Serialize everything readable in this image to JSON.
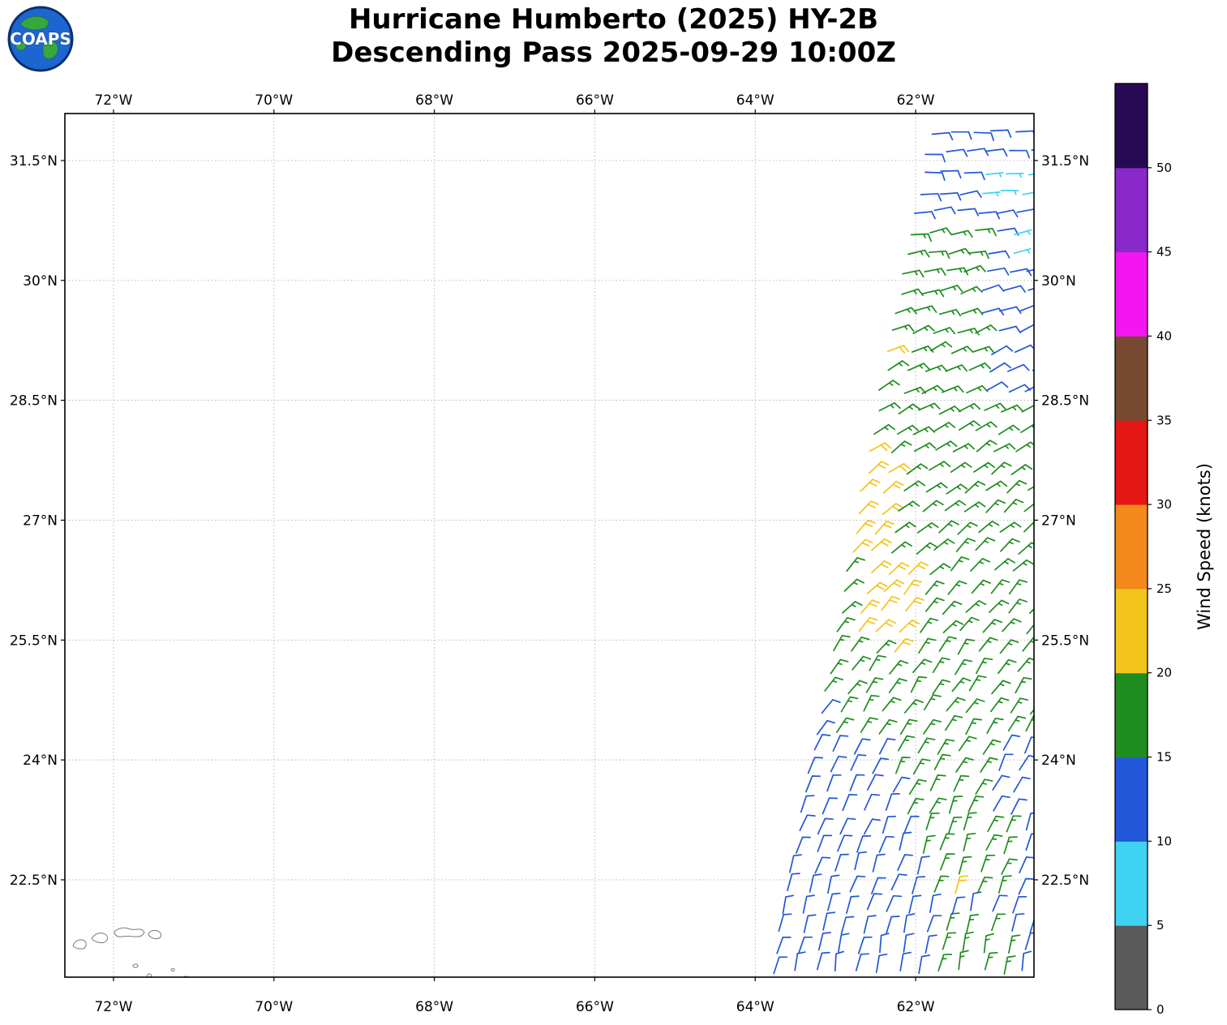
{
  "header": {
    "logo_text": "COAPS",
    "title_line1": "Hurricane Humberto (2025) HY-2B",
    "title_line2": "Descending Pass 2025-09-29 10:00Z"
  },
  "chart_data": {
    "type": "wind_barb_map",
    "title": "Hurricane Humberto (2025) HY-2B",
    "subtitle": "Descending Pass 2025-09-29 10:00Z",
    "x_axis": {
      "ticks": [
        -72,
        -70,
        -68,
        -66,
        -64,
        -62
      ],
      "tick_labels": [
        "72°W",
        "70°W",
        "68°W",
        "66°W",
        "64°W",
        "62°W"
      ],
      "range": [
        -72.606,
        -60.525
      ]
    },
    "y_axis": {
      "ticks": [
        31.5,
        30,
        28.5,
        27,
        25.5,
        24,
        22.5
      ],
      "tick_labels": [
        "31.5°N",
        "30°N",
        "28.5°N",
        "27°N",
        "25.5°N",
        "24°N",
        "22.5°N"
      ],
      "range": [
        21.282,
        32.088
      ]
    },
    "grid": {
      "style": "dashed",
      "color": "#b0b0b0"
    },
    "colorbar": {
      "label": "Wind Speed (knots)",
      "tick_values": [
        0,
        5,
        10,
        15,
        20,
        25,
        30,
        35,
        40,
        45,
        50
      ],
      "max_value": 55,
      "segments": [
        {
          "from": 0,
          "to": 5,
          "color": "#5a5a5a"
        },
        {
          "from": 5,
          "to": 10,
          "color": "#3fd2f2"
        },
        {
          "from": 10,
          "to": 15,
          "color": "#2257d9"
        },
        {
          "from": 15,
          "to": 20,
          "color": "#1f8c1f"
        },
        {
          "from": 20,
          "to": 25,
          "color": "#f2c41c"
        },
        {
          "from": 25,
          "to": 30,
          "color": "#f2891a"
        },
        {
          "from": 30,
          "to": 35,
          "color": "#e51616"
        },
        {
          "from": 35,
          "to": 40,
          "color": "#774a31"
        },
        {
          "from": 40,
          "to": 45,
          "color": "#f316f3"
        },
        {
          "from": 45,
          "to": 50,
          "color": "#8929c9"
        },
        {
          "from": 50,
          "to": 55,
          "color": "#270a53"
        }
      ]
    },
    "speed_colors": [
      {
        "min": 5,
        "max": 10,
        "color": "#3fd2f2"
      },
      {
        "min": 10,
        "max": 15,
        "color": "#2257d9"
      },
      {
        "min": 15,
        "max": 20,
        "color": "#1f8c1f"
      },
      {
        "min": 20,
        "max": 25,
        "color": "#f2c41c"
      }
    ],
    "swath": {
      "lat_min": 21.35,
      "lat_max": 32.05,
      "lat_step": 0.25,
      "lon_step": 0.26,
      "lon_right": -60.55,
      "left_edge": {
        "lat_ref": 21.3,
        "lon_at_ref": -63.78,
        "dlon_dlat": 0.186
      }
    },
    "default_speed_kt": 12,
    "speed_rules": [
      {
        "lat": [
          30.9,
          31.5
        ],
        "lon": [
          -61.35,
          -60.4
        ],
        "speed": 7
      },
      {
        "lat": [
          30.3,
          30.75
        ],
        "lon": [
          -60.95,
          -60.4
        ],
        "speed": 7
      },
      {
        "lat": [
          30.8,
          32.2
        ],
        "lon": [
          -64.5,
          -60.4
        ],
        "speed": 12
      },
      {
        "lat": [
          29.1,
          29.35
        ],
        "lon": [
          -62.35,
          -62.08
        ],
        "speed": 22
      },
      {
        "lat": [
          28.4,
          30.8
        ],
        "lon": [
          -64.5,
          -61.25
        ],
        "speed": 17
      },
      {
        "lat": [
          28.4,
          30.8
        ],
        "lon": [
          -61.25,
          -60.4
        ],
        "speed": 12
      },
      {
        "lat": [
          26.4,
          27.95
        ],
        "lon": [
          -63.05,
          -62.3
        ],
        "speed": 22
      },
      {
        "lat": [
          25.35,
          26.5
        ],
        "lon": [
          -62.8,
          -61.95
        ],
        "speed": 22
      },
      {
        "lat": [
          24.9,
          28.4
        ],
        "lon": [
          -64.5,
          -60.4
        ],
        "speed": 17
      },
      {
        "lat": [
          24.25,
          24.9
        ],
        "lon": [
          -64.5,
          -63.15
        ],
        "speed": 12
      },
      {
        "lat": [
          24.25,
          24.9
        ],
        "lon": [
          -63.15,
          -60.4
        ],
        "speed": 17
      },
      {
        "lat": [
          22.2,
          22.55
        ],
        "lon": [
          -61.7,
          -61.35
        ],
        "speed": 22
      },
      {
        "lat": [
          23.2,
          24.25
        ],
        "lon": [
          -62.25,
          -61.05
        ],
        "speed": 17
      },
      {
        "lat": [
          22.3,
          23.2
        ],
        "lon": [
          -61.95,
          -60.85
        ],
        "speed": 17
      },
      {
        "lat": [
          21.2,
          21.9
        ],
        "lon": [
          -61.85,
          -60.8
        ],
        "speed": 17
      }
    ],
    "direction_profile": [
      {
        "lat": 32.2,
        "from_deg": 95
      },
      {
        "lat": 29.5,
        "from_deg": 70
      },
      {
        "lat": 26.5,
        "from_deg": 45
      },
      {
        "lat": 23.5,
        "from_deg": 25
      },
      {
        "lat": 21.2,
        "from_deg": 10
      }
    ]
  }
}
